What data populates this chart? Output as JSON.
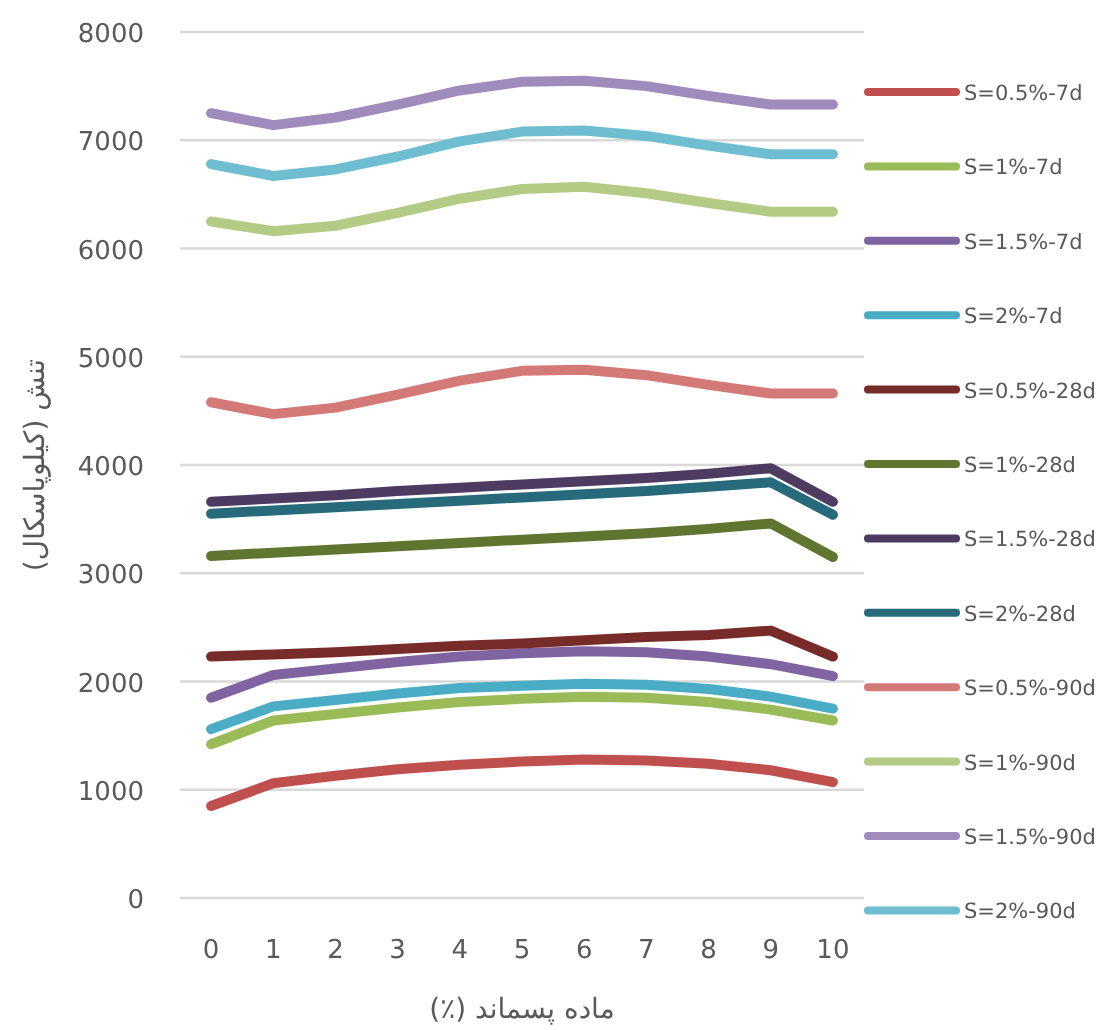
{
  "chart_data": {
    "type": "line",
    "xlabel": "ماده پسماند (٪)",
    "ylabel": "تنش (کیلوپاسکال)",
    "categories": [
      "0",
      "1",
      "2",
      "3",
      "4",
      "5",
      "6",
      "7",
      "8",
      "9",
      "10"
    ],
    "ylim": [
      0,
      8000
    ],
    "yticks": [
      0,
      1000,
      2000,
      3000,
      4000,
      5000,
      6000,
      7000,
      8000
    ],
    "grid": "y",
    "legend": "right",
    "marker": "none",
    "line_style": "solid",
    "series": [
      {
        "name": "S=0.5%-7d",
        "color": "#c0504d",
        "values": [
          850,
          1060,
          1130,
          1190,
          1230,
          1260,
          1280,
          1270,
          1240,
          1180,
          1070
        ]
      },
      {
        "name": "S=1%-7d",
        "color": "#9bbb59",
        "values": [
          1420,
          1640,
          1700,
          1760,
          1810,
          1840,
          1860,
          1850,
          1810,
          1740,
          1640
        ]
      },
      {
        "name": "S=1.5%-7d",
        "color": "#8064a2",
        "values": [
          1850,
          2060,
          2120,
          2180,
          2230,
          2260,
          2280,
          2270,
          2230,
          2160,
          2050
        ]
      },
      {
        "name": "S=2%-7d",
        "color": "#4bacc6",
        "values": [
          1560,
          1770,
          1830,
          1890,
          1940,
          1960,
          1980,
          1970,
          1930,
          1860,
          1750
        ]
      },
      {
        "name": "S=0.5%-28d",
        "color": "#772c2a",
        "values": [
          2230,
          2250,
          2270,
          2300,
          2330,
          2350,
          2380,
          2410,
          2430,
          2470,
          2230
        ]
      },
      {
        "name": "S=1%-28d",
        "color": "#5f7530",
        "values": [
          3160,
          3190,
          3220,
          3250,
          3280,
          3310,
          3340,
          3370,
          3410,
          3460,
          3150
        ]
      },
      {
        "name": "S=1.5%-28d",
        "color": "#4d3b62",
        "values": [
          3660,
          3690,
          3720,
          3760,
          3790,
          3820,
          3850,
          3880,
          3920,
          3970,
          3660
        ]
      },
      {
        "name": "S=2%-28d",
        "color": "#276a7c",
        "values": [
          3550,
          3580,
          3610,
          3640,
          3670,
          3700,
          3730,
          3760,
          3800,
          3840,
          3540
        ]
      },
      {
        "name": "S=0.5%-90d",
        "color": "#d37a78",
        "values": [
          4580,
          4470,
          4530,
          4650,
          4780,
          4870,
          4880,
          4830,
          4740,
          4660,
          4660
        ]
      },
      {
        "name": "S=1%-90d",
        "color": "#b3cb84",
        "values": [
          6250,
          6160,
          6210,
          6330,
          6460,
          6550,
          6570,
          6510,
          6420,
          6340,
          6340
        ]
      },
      {
        "name": "S=1.5%-90d",
        "color": "#a08bbd",
        "values": [
          7250,
          7140,
          7210,
          7330,
          7460,
          7540,
          7550,
          7500,
          7410,
          7330,
          7330
        ]
      },
      {
        "name": "S=2%-90d",
        "color": "#6fbdd1",
        "values": [
          6780,
          6670,
          6730,
          6850,
          6990,
          7080,
          7090,
          7040,
          6950,
          6870,
          6870
        ]
      }
    ]
  }
}
